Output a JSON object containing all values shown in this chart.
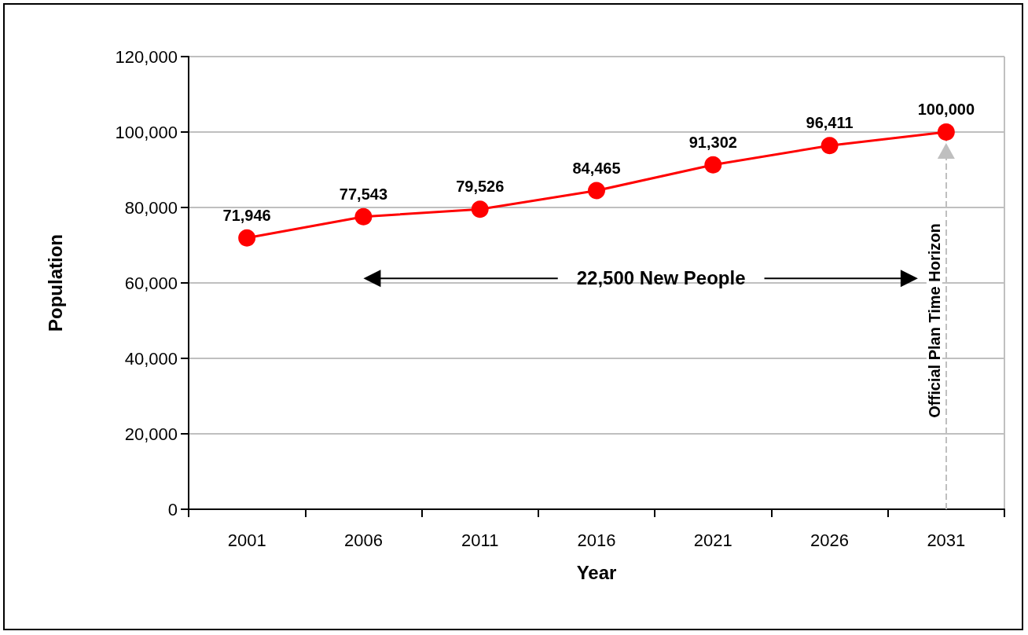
{
  "chart_data": {
    "type": "line",
    "categories": [
      "2001",
      "2006",
      "2011",
      "2016",
      "2021",
      "2026",
      "2031"
    ],
    "series": [
      {
        "color": "#ff0000",
        "values": [
          71946,
          77543,
          79526,
          84465,
          91302,
          96411,
          100000
        ]
      }
    ],
    "xlabel": "Year",
    "ylabel": "Population",
    "ylim": [
      0,
      120000
    ],
    "yticks": [
      {
        "value": 0,
        "label": "0"
      },
      {
        "value": 20000,
        "label": "20,000"
      },
      {
        "value": 40000,
        "label": "40,000"
      },
      {
        "value": 60000,
        "label": "60,000"
      },
      {
        "value": 80000,
        "label": "80,000"
      },
      {
        "value": 100000,
        "label": "100,000"
      },
      {
        "value": 120000,
        "label": "120,000"
      }
    ],
    "value_labels": [
      "71,946",
      "77,543",
      "79,526",
      "84,465",
      "91,302",
      "96,411",
      "100,000"
    ],
    "grid": "y",
    "marker": "circle",
    "line_style": "solid",
    "ref_lines": [
      {
        "axis": "x",
        "value": "2031",
        "label": "Official Plan Time Horizon",
        "color": "#bfbfbf",
        "line_style": "dashed"
      }
    ],
    "annotations": [
      "22,500 New People"
    ]
  }
}
